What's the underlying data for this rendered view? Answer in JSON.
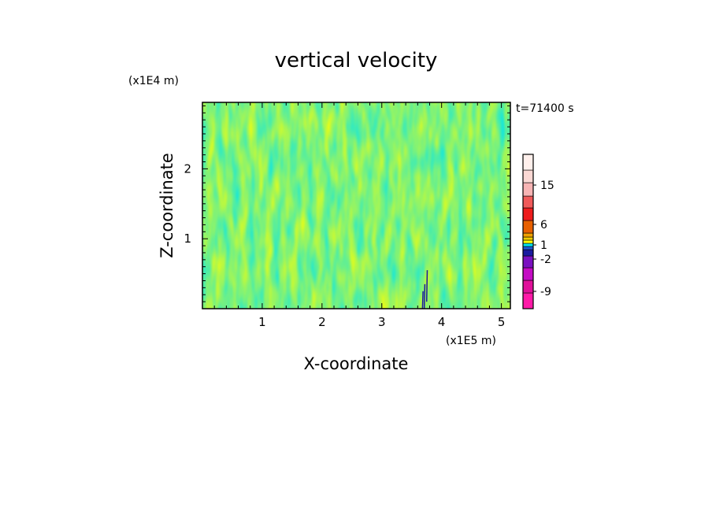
{
  "chart_data": {
    "type": "heatmap",
    "title": "vertical velocity",
    "xlabel": "X-coordinate",
    "ylabel": "Z-coordinate",
    "x_unit": "(x1E5 m)",
    "y_unit": "(x1E4 m)",
    "time_label": "t=71400 s",
    "xlim": [
      0,
      5.15
    ],
    "ylim": [
      0,
      2.95
    ],
    "x_ticks": [
      1,
      2,
      3,
      4,
      5
    ],
    "x_tick_labels": [
      "1",
      "2",
      "3",
      "4",
      "5"
    ],
    "y_ticks": [
      1,
      2
    ],
    "y_tick_labels": [
      "1",
      "2"
    ],
    "field_colors": {
      "positive": "#ffff00",
      "negative": "#00e5ee",
      "strong_negative": "#1a1aa0"
    },
    "colorbar": {
      "levels": [
        {
          "color": "#ff1aa8"
        },
        {
          "color": "#e0109a"
        },
        {
          "color": "#c40cc4"
        },
        {
          "color": "#7a10c0"
        },
        {
          "color": "#1a1aa0"
        },
        {
          "color": "#1c5ad6"
        },
        {
          "color": "#00e5ee"
        },
        {
          "color": "#ffff00"
        },
        {
          "color": "#f0cc00"
        },
        {
          "color": "#f0a000"
        },
        {
          "color": "#e86000"
        },
        {
          "color": "#ee1c1c"
        },
        {
          "color": "#f05a5a"
        },
        {
          "color": "#f7b4b4"
        },
        {
          "color": "#fbd8d4"
        },
        {
          "color": "#fff0ec"
        }
      ],
      "labels": [
        {
          "text": "15"
        },
        {
          "text": "6"
        },
        {
          "text": "1"
        },
        {
          "text": "-2"
        },
        {
          "text": "-9"
        }
      ]
    }
  }
}
